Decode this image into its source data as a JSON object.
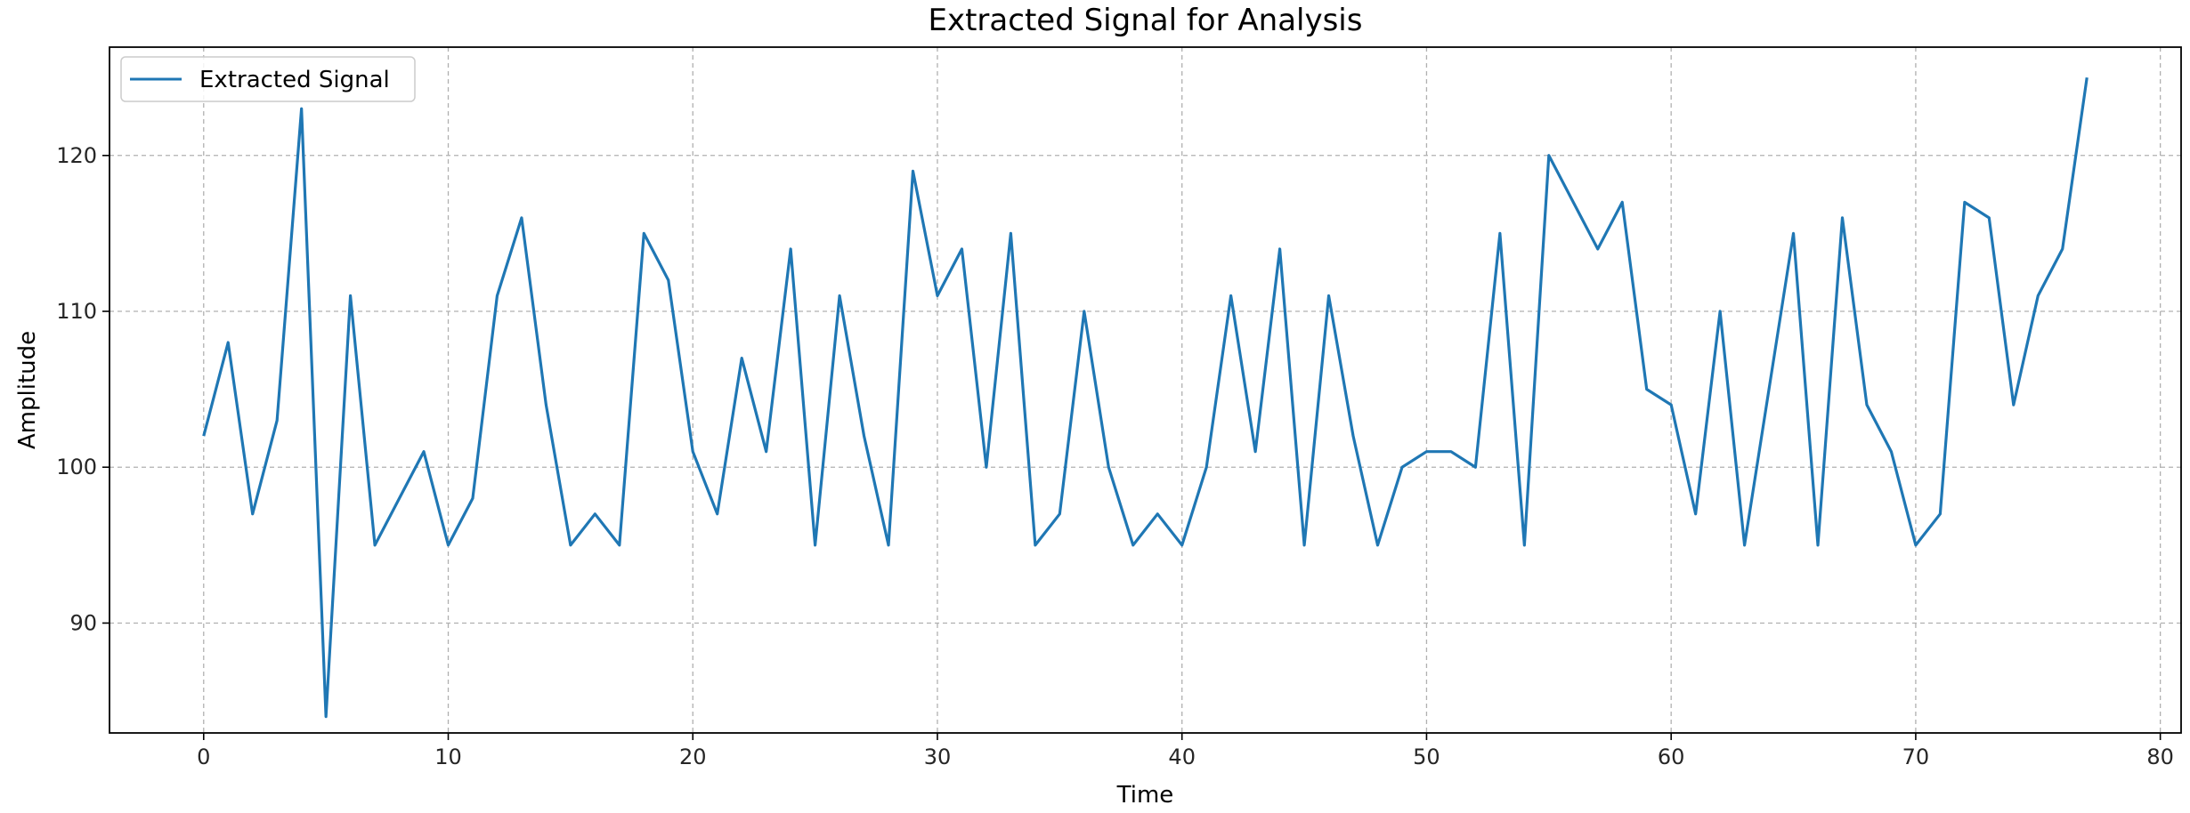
{
  "chart_data": {
    "type": "line",
    "title": "Extracted Signal for Analysis",
    "xlabel": "Time",
    "ylabel": "Amplitude",
    "xlim": [
      -3.85,
      80.85
    ],
    "ylim": [
      82.95,
      126.95
    ],
    "xticks": [
      0,
      10,
      20,
      30,
      40,
      50,
      60,
      70,
      80
    ],
    "yticks": [
      90,
      100,
      110,
      120
    ],
    "grid": true,
    "legend_position": "upper left",
    "series": [
      {
        "name": "Extracted Signal",
        "color": "#1f77b4",
        "x": [
          0,
          1,
          2,
          3,
          4,
          5,
          6,
          7,
          8,
          9,
          10,
          11,
          12,
          13,
          14,
          15,
          16,
          17,
          18,
          19,
          20,
          21,
          22,
          23,
          24,
          25,
          26,
          27,
          28,
          29,
          30,
          31,
          32,
          33,
          34,
          35,
          36,
          37,
          38,
          39,
          40,
          41,
          42,
          43,
          44,
          45,
          46,
          47,
          48,
          49,
          50,
          51,
          52,
          53,
          54,
          55,
          56,
          57,
          58,
          59,
          60,
          61,
          62,
          63,
          64,
          65,
          66,
          67,
          68,
          69,
          70,
          71,
          72,
          73,
          74,
          75,
          76,
          77
        ],
        "values": [
          102,
          108,
          97,
          103,
          123,
          84,
          111,
          95,
          98,
          101,
          95,
          98,
          111,
          116,
          104,
          95,
          97,
          95,
          115,
          112,
          101,
          97,
          107,
          101,
          114,
          95,
          111,
          102,
          95,
          119,
          111,
          114,
          100,
          115,
          95,
          97,
          110,
          100,
          95,
          97,
          95,
          100,
          111,
          101,
          114,
          95,
          111,
          102,
          95,
          100,
          101,
          101,
          100,
          115,
          95,
          120,
          117,
          114,
          117,
          105,
          104,
          97,
          110,
          95,
          105,
          115,
          95,
          116,
          104,
          101,
          95,
          97,
          117,
          116,
          104,
          111,
          114,
          125
        ]
      }
    ]
  }
}
